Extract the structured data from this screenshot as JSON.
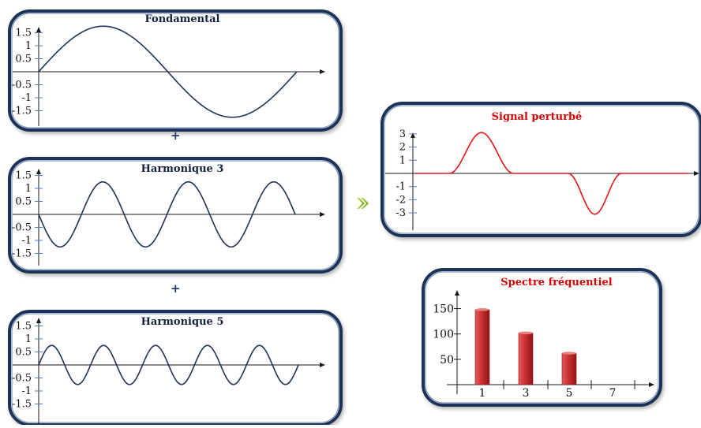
{
  "connectors": {
    "plus": "+",
    "arrow": "»"
  },
  "panels": [
    {
      "id": "fondamental",
      "title": "Fondamental",
      "title_color": "#14213d",
      "ytick_labels": [
        "1.5",
        "1",
        "0.5",
        "-0.5",
        "-1",
        "-1.5"
      ],
      "ytick_values": [
        1.5,
        1,
        0.5,
        -0.5,
        -1,
        -1.5
      ],
      "ylim": [
        -2,
        2
      ],
      "curve": {
        "type": "sine",
        "harmonic": 1,
        "amplitude": 1.75,
        "color": "#1c3556"
      }
    },
    {
      "id": "harmonique-3",
      "title": "Harmonique 3",
      "title_color": "#14213d",
      "ytick_labels": [
        "1.5",
        "1",
        "0.5",
        "-0.5",
        "-1",
        "-1.5"
      ],
      "ytick_values": [
        1.5,
        1,
        0.5,
        -0.5,
        -1,
        -1.5
      ],
      "ylim": [
        -2,
        2
      ],
      "curve": {
        "type": "sine",
        "harmonic": 3,
        "amplitude": 1.25,
        "phase_sign": -1,
        "color": "#1c3556"
      }
    },
    {
      "id": "harmonique-5",
      "title": "Harmonique 5",
      "title_color": "#14213d",
      "ytick_labels": [
        "1.5",
        "1",
        "0.5",
        "-0.5",
        "-1",
        "-1.5"
      ],
      "ytick_values": [
        1.5,
        1,
        0.5,
        -0.5,
        -1,
        -1.5
      ],
      "ylim": [
        -2,
        2
      ],
      "curve": {
        "type": "sine",
        "harmonic": 5,
        "amplitude": 0.75,
        "color": "#1c3556"
      }
    },
    {
      "id": "signal-perturbe",
      "title": "Signal perturbé",
      "title_color": "#d40000",
      "ytick_labels": [
        "3",
        "2",
        "1",
        "-1",
        "-2",
        "-3"
      ],
      "ytick_values": [
        3,
        2,
        1,
        -1,
        -2,
        -3
      ],
      "ylim": [
        -4,
        4
      ],
      "curve": {
        "type": "pulse",
        "amplitude": 3.1,
        "color": "#e31515"
      }
    }
  ],
  "spectrum": {
    "title": "Spectre fréquentiel",
    "title_color": "#d40000",
    "chart_data": {
      "type": "bar",
      "title": "Spectre fréquentiel",
      "categories": [
        "1",
        "3",
        "5",
        "7"
      ],
      "values": [
        148,
        102,
        62,
        0
      ],
      "ytick_labels": [
        "150",
        "100",
        "50"
      ],
      "ytick_values": [
        150,
        100,
        50
      ],
      "ylim": [
        0,
        190
      ],
      "bar_color": "#c62d2d"
    }
  }
}
